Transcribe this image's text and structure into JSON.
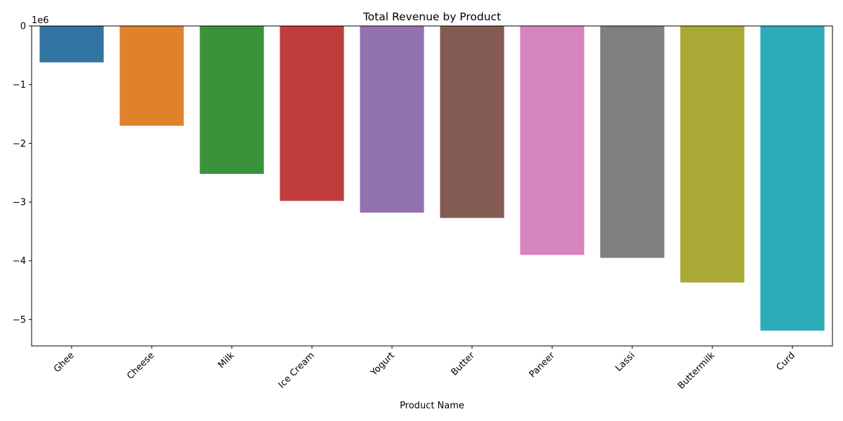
{
  "chart_data": {
    "type": "bar",
    "title": "Total Revenue by Product",
    "xlabel": "Product Name",
    "ylabel": "",
    "offset_text": "1e6",
    "scale_factor": 1000000,
    "categories": [
      "Ghee",
      "Cheese",
      "Milk",
      "Ice Cream",
      "Yogurt",
      "Butter",
      "Paneer",
      "Lassi",
      "Buttermilk",
      "Curd"
    ],
    "values": [
      -620000,
      -1700000,
      -2520000,
      -2980000,
      -3180000,
      -3270000,
      -3900000,
      -3950000,
      -4370000,
      -5190000
    ],
    "colors": [
      "#3274a1",
      "#e1812c",
      "#3a923a",
      "#c03d3e",
      "#9372b2",
      "#845b53",
      "#d684bd",
      "#7f7f7f",
      "#a9aa35",
      "#2eabb8"
    ],
    "ylim": [
      -5450000,
      0
    ],
    "yticks": [
      0,
      -1,
      -2,
      -3,
      -4,
      -5
    ],
    "ytick_labels": [
      "0",
      "−1",
      "−2",
      "−3",
      "−4",
      "−5"
    ],
    "x_tick_rotation": 45,
    "grid": false,
    "legend": "none"
  }
}
